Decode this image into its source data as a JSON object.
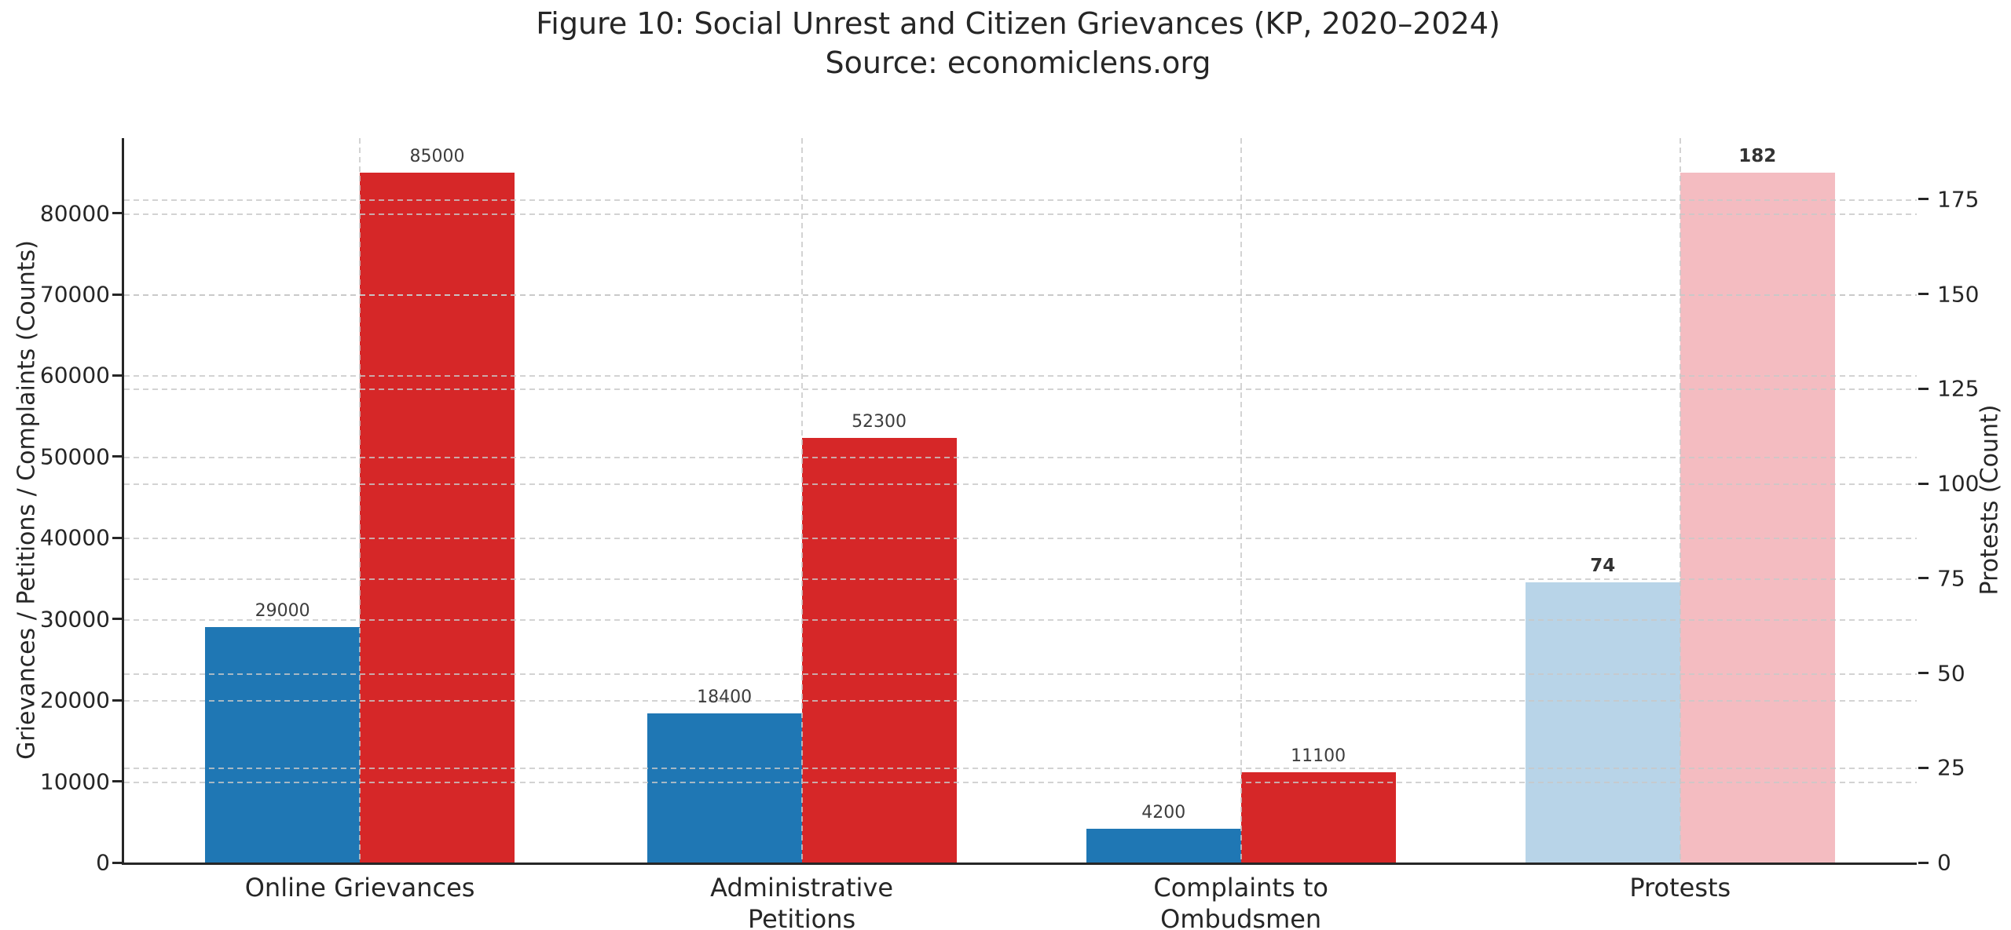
{
  "chart_data": {
    "type": "bar",
    "title": "Figure 10: Social Unrest and Citizen Grievances (KP, 2020–2024)",
    "subtitle": "Source: economiclens.org",
    "grid": true,
    "legend": false,
    "gridline_color": "#c8c8c8",
    "spine_color": "#262626",
    "axes": {
      "left": {
        "label": "Grievances / Petitions / Complaints (Counts)",
        "ticks": [
          0,
          10000,
          20000,
          30000,
          40000,
          50000,
          60000,
          70000,
          80000
        ],
        "min": 0,
        "max": 89250
      },
      "right": {
        "label": "Protests (Count)",
        "ticks": [
          0,
          25,
          50,
          75,
          100,
          125,
          150,
          175
        ],
        "min": 0,
        "max": 191.1
      }
    },
    "groups": [
      {
        "category": "Online Grievances",
        "bars": [
          {
            "value": 29000,
            "label": "29000",
            "axis": "left",
            "color": "#1f77b4",
            "bold": false
          },
          {
            "value": 85000,
            "label": "85000",
            "axis": "left",
            "color": "#d62728",
            "bold": false
          }
        ]
      },
      {
        "category": "Administrative\nPetitions",
        "bars": [
          {
            "value": 18400,
            "label": "18400",
            "axis": "left",
            "color": "#1f77b4",
            "bold": false
          },
          {
            "value": 52300,
            "label": "52300",
            "axis": "left",
            "color": "#d62728",
            "bold": false
          }
        ]
      },
      {
        "category": "Complaints to\nOmbudsmen",
        "bars": [
          {
            "value": 4200,
            "label": "4200",
            "axis": "left",
            "color": "#1f77b4",
            "bold": false
          },
          {
            "value": 11100,
            "label": "11100",
            "axis": "left",
            "color": "#d62728",
            "bold": false
          }
        ]
      },
      {
        "category": "Protests",
        "bars": [
          {
            "value": 74,
            "label": "74",
            "axis": "right",
            "color": "#b8d4e8",
            "bold": true
          },
          {
            "value": 182,
            "label": "182",
            "axis": "right",
            "color": "#f4bcc1",
            "bold": true
          }
        ]
      }
    ]
  }
}
